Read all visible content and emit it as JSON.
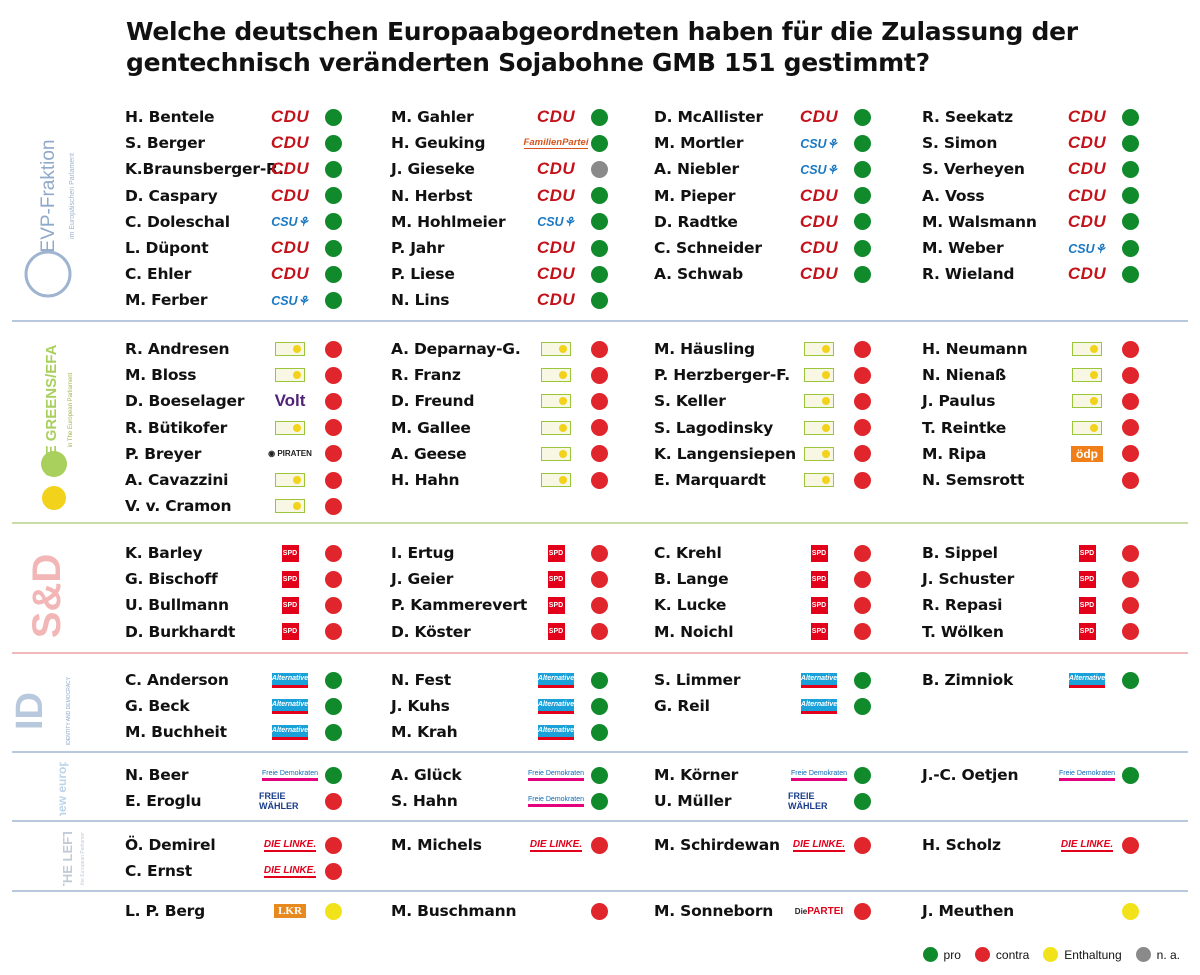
{
  "title_line1": "Welche deutschen Europaabgeordneten haben für die Zulassung der",
  "title_line2": "gentechnisch veränderten Sojabohne GMB 151 gestimmt?",
  "colors": {
    "pro": "#118a2c",
    "contra": "#e0262c",
    "enthaltung": "#f2e21a",
    "na": "#8a8a8a"
  },
  "groups": [
    {
      "id": "evp",
      "logo": "EVP-Fraktion",
      "logo_sub": "im Europäischen Parlament",
      "top": 104,
      "height": 212,
      "divider_color": "#b8c9de",
      "columns": [
        [
          {
            "name": "H. Bentele",
            "party": "cdu",
            "vote": "pro"
          },
          {
            "name": "S. Berger",
            "party": "cdu",
            "vote": "pro"
          },
          {
            "name": "K.Braunsberger-R.",
            "party": "cdu",
            "vote": "pro"
          },
          {
            "name": "D. Caspary",
            "party": "cdu",
            "vote": "pro"
          },
          {
            "name": "C. Doleschal",
            "party": "csu",
            "vote": "pro"
          },
          {
            "name": "L. Düpont",
            "party": "cdu",
            "vote": "pro"
          },
          {
            "name": "C. Ehler",
            "party": "cdu",
            "vote": "pro"
          },
          {
            "name": "M. Ferber",
            "party": "csu",
            "vote": "pro"
          }
        ],
        [
          {
            "name": "M. Gahler",
            "party": "cdu",
            "vote": "pro"
          },
          {
            "name": "H. Geuking",
            "party": "fam",
            "vote": "pro"
          },
          {
            "name": "J. Gieseke",
            "party": "cdu",
            "vote": "na"
          },
          {
            "name": "N. Herbst",
            "party": "cdu",
            "vote": "pro"
          },
          {
            "name": "M. Hohlmeier",
            "party": "csu",
            "vote": "pro"
          },
          {
            "name": "P. Jahr",
            "party": "cdu",
            "vote": "pro"
          },
          {
            "name": "P. Liese",
            "party": "cdu",
            "vote": "pro"
          },
          {
            "name": "N. Lins",
            "party": "cdu",
            "vote": "pro"
          }
        ],
        [
          {
            "name": "D. McAllister",
            "party": "cdu",
            "vote": "pro"
          },
          {
            "name": "M. Mortler",
            "party": "csu",
            "vote": "pro"
          },
          {
            "name": "A. Niebler",
            "party": "csu",
            "vote": "pro"
          },
          {
            "name": "M. Pieper",
            "party": "cdu",
            "vote": "pro"
          },
          {
            "name": "D. Radtke",
            "party": "cdu",
            "vote": "pro"
          },
          {
            "name": "C. Schneider",
            "party": "cdu",
            "vote": "pro"
          },
          {
            "name": "A. Schwab",
            "party": "cdu",
            "vote": "pro"
          }
        ],
        [
          {
            "name": "R. Seekatz",
            "party": "cdu",
            "vote": "pro"
          },
          {
            "name": "S. Simon",
            "party": "cdu",
            "vote": "pro"
          },
          {
            "name": "S. Verheyen",
            "party": "cdu",
            "vote": "pro"
          },
          {
            "name": "A. Voss",
            "party": "cdu",
            "vote": "pro"
          },
          {
            "name": "M. Walsmann",
            "party": "cdu",
            "vote": "pro"
          },
          {
            "name": "M. Weber",
            "party": "csu",
            "vote": "pro"
          },
          {
            "name": "R. Wieland",
            "party": "cdu",
            "vote": "pro"
          }
        ]
      ]
    },
    {
      "id": "greens",
      "logo": "THE GREENS/EFA",
      "logo_sub": "in The European Parliament",
      "top": 336,
      "height": 182,
      "divider_color": "#c9dca8",
      "columns": [
        [
          {
            "name": "R. Andresen",
            "party": "gruene",
            "vote": "contra"
          },
          {
            "name": "M. Bloss",
            "party": "gruene",
            "vote": "contra"
          },
          {
            "name": "D. Boeselager",
            "party": "volt",
            "vote": "contra"
          },
          {
            "name": "R. Bütikofer",
            "party": "gruene",
            "vote": "contra"
          },
          {
            "name": "P. Breyer",
            "party": "piraten",
            "vote": "contra"
          },
          {
            "name": "A. Cavazzini",
            "party": "gruene",
            "vote": "contra"
          },
          {
            "name": "V. v. Cramon",
            "party": "gruene",
            "vote": "contra"
          }
        ],
        [
          {
            "name": "A. Deparnay-G.",
            "party": "gruene",
            "vote": "contra"
          },
          {
            "name": "R. Franz",
            "party": "gruene",
            "vote": "contra"
          },
          {
            "name": "D. Freund",
            "party": "gruene",
            "vote": "contra"
          },
          {
            "name": "M. Gallee",
            "party": "gruene",
            "vote": "contra"
          },
          {
            "name": "A. Geese",
            "party": "gruene",
            "vote": "contra"
          },
          {
            "name": "H. Hahn",
            "party": "gruene",
            "vote": "contra"
          }
        ],
        [
          {
            "name": "M. Häusling",
            "party": "gruene",
            "vote": "contra"
          },
          {
            "name": "P. Herzberger-F.",
            "party": "gruene",
            "vote": "contra"
          },
          {
            "name": "S. Keller",
            "party": "gruene",
            "vote": "contra"
          },
          {
            "name": "S. Lagodinsky",
            "party": "gruene",
            "vote": "contra"
          },
          {
            "name": "K. Langensiepen",
            "party": "gruene",
            "vote": "contra"
          },
          {
            "name": "E. Marquardt",
            "party": "gruene",
            "vote": "contra"
          }
        ],
        [
          {
            "name": "H. Neumann",
            "party": "gruene",
            "vote": "contra"
          },
          {
            "name": "N. Nienaß",
            "party": "gruene",
            "vote": "contra"
          },
          {
            "name": "J. Paulus",
            "party": "gruene",
            "vote": "contra"
          },
          {
            "name": "T. Reintke",
            "party": "gruene",
            "vote": "contra"
          },
          {
            "name": "M. Ripa",
            "party": "odp",
            "vote": "contra"
          },
          {
            "name": "N. Semsrott",
            "party": "",
            "vote": "contra"
          }
        ]
      ]
    },
    {
      "id": "sd",
      "logo": "S&D",
      "logo_sub": "",
      "top": 540,
      "height": 108,
      "divider_color": "#f1b9bb",
      "columns": [
        [
          {
            "name": "K. Barley",
            "party": "spd",
            "vote": "contra"
          },
          {
            "name": "G. Bischoff",
            "party": "spd",
            "vote": "contra"
          },
          {
            "name": "U. Bullmann",
            "party": "spd",
            "vote": "contra"
          },
          {
            "name": "D. Burkhardt",
            "party": "spd",
            "vote": "contra"
          }
        ],
        [
          {
            "name": "I. Ertug",
            "party": "spd",
            "vote": "contra"
          },
          {
            "name": "J. Geier",
            "party": "spd",
            "vote": "contra"
          },
          {
            "name": "P. Kammerevert",
            "party": "spd",
            "vote": "contra"
          },
          {
            "name": "D. Köster",
            "party": "spd",
            "vote": "contra"
          }
        ],
        [
          {
            "name": "C. Krehl",
            "party": "spd",
            "vote": "contra"
          },
          {
            "name": "B. Lange",
            "party": "spd",
            "vote": "contra"
          },
          {
            "name": "K. Lucke",
            "party": "spd",
            "vote": "contra"
          },
          {
            "name": "M. Noichl",
            "party": "spd",
            "vote": "contra"
          }
        ],
        [
          {
            "name": "B. Sippel",
            "party": "spd",
            "vote": "contra"
          },
          {
            "name": "J. Schuster",
            "party": "spd",
            "vote": "contra"
          },
          {
            "name": "R. Repasi",
            "party": "spd",
            "vote": "contra"
          },
          {
            "name": "T. Wölken",
            "party": "spd",
            "vote": "contra"
          }
        ]
      ]
    },
    {
      "id": "id",
      "logo": "ID",
      "logo_sub": "IDENTITY AND DEMOCRACY",
      "top": 667,
      "height": 80,
      "divider_color": "#b8c9de",
      "columns": [
        [
          {
            "name": "C. Anderson",
            "party": "afd",
            "vote": "pro"
          },
          {
            "name": "G. Beck",
            "party": "afd",
            "vote": "pro"
          },
          {
            "name": "M. Buchheit",
            "party": "afd",
            "vote": "pro"
          }
        ],
        [
          {
            "name": "N. Fest",
            "party": "afd",
            "vote": "pro"
          },
          {
            "name": "J. Kuhs",
            "party": "afd",
            "vote": "pro"
          },
          {
            "name": "M. Krah",
            "party": "afd",
            "vote": "pro"
          }
        ],
        [
          {
            "name": "S. Limmer",
            "party": "afd",
            "vote": "pro"
          },
          {
            "name": "G. Reil",
            "party": "afd",
            "vote": "pro"
          }
        ],
        [
          {
            "name": "B. Zimniok",
            "party": "afd",
            "vote": "pro"
          }
        ]
      ]
    },
    {
      "id": "renew",
      "logo": "renew europe.",
      "logo_sub": "",
      "top": 762,
      "height": 54,
      "divider_color": "#b8c9de",
      "columns": [
        [
          {
            "name": "N. Beer",
            "party": "fdp",
            "vote": "pro"
          },
          {
            "name": "E. Eroglu",
            "party": "fw",
            "vote": "contra"
          }
        ],
        [
          {
            "name": "A. Glück",
            "party": "fdp",
            "vote": "pro"
          },
          {
            "name": "S. Hahn",
            "party": "fdp",
            "vote": "pro"
          }
        ],
        [
          {
            "name": "M. Körner",
            "party": "fdp",
            "vote": "pro"
          },
          {
            "name": "U. Müller",
            "party": "fw",
            "vote": "pro"
          }
        ],
        [
          {
            "name": "J.-C. Oetjen",
            "party": "fdp",
            "vote": "pro"
          }
        ]
      ]
    },
    {
      "id": "left",
      "logo": "THE LEFT",
      "logo_sub": "in the European Parliament",
      "top": 832,
      "height": 54,
      "divider_color": "#b8c9de",
      "columns": [
        [
          {
            "name": "Ö. Demirel",
            "party": "linke",
            "vote": "contra"
          },
          {
            "name": "C. Ernst",
            "party": "linke",
            "vote": "contra"
          }
        ],
        [
          {
            "name": "M. Michels",
            "party": "linke",
            "vote": "contra"
          }
        ],
        [
          {
            "name": "M. Schirdewan",
            "party": "linke",
            "vote": "contra"
          }
        ],
        [
          {
            "name": "H. Scholz",
            "party": "linke",
            "vote": "contra"
          }
        ]
      ]
    },
    {
      "id": "ni",
      "logo": "",
      "logo_sub": "",
      "top": 898,
      "height": 28,
      "divider_color": "",
      "columns": [
        [
          {
            "name": "L. P. Berg",
            "party": "lkr",
            "vote": "enthaltung"
          }
        ],
        [
          {
            "name": "M. Buschmann",
            "party": "",
            "vote": "contra"
          }
        ],
        [
          {
            "name": "M. Sonneborn",
            "party": "partei",
            "vote": "contra"
          }
        ],
        [
          {
            "name": "J. Meuthen",
            "party": "",
            "vote": "enthaltung"
          }
        ]
      ]
    }
  ],
  "party_labels": {
    "cdu": "CDU",
    "csu": "CSU",
    "fam": "FamilienPartei",
    "gruene": "",
    "volt": "Volt",
    "piraten": "PIRATEN",
    "odp": "ödp",
    "spd": "SPD",
    "afd": "Alternative",
    "fdp": "Freie Demokraten",
    "fw": "FREIE WÄHLER",
    "linke": "DIE LINKE.",
    "lkr": "LKR",
    "partei": "PARTEI",
    "partei_prefix": "Die"
  },
  "legend": [
    {
      "key": "pro",
      "label": "pro"
    },
    {
      "key": "contra",
      "label": "contra"
    },
    {
      "key": "enthaltung",
      "label": "Enthaltung"
    },
    {
      "key": "na",
      "label": "n. a."
    }
  ]
}
